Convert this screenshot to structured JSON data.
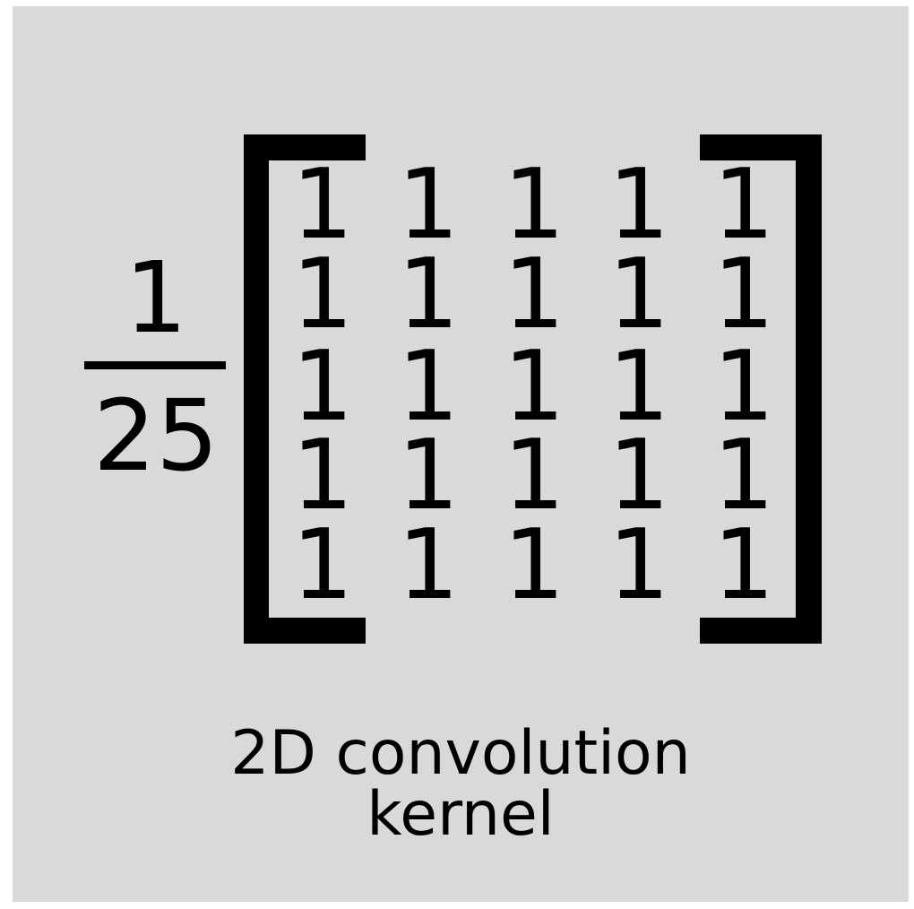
{
  "fraction": {
    "numerator": "1",
    "denominator": "25"
  },
  "matrix": [
    [
      "1",
      "1",
      "1",
      "1",
      "1"
    ],
    [
      "1",
      "1",
      "1",
      "1",
      "1"
    ],
    [
      "1",
      "1",
      "1",
      "1",
      "1"
    ],
    [
      "1",
      "1",
      "1",
      "1",
      "1"
    ],
    [
      "1",
      "1",
      "1",
      "1",
      "1"
    ]
  ],
  "caption": {
    "line1": "2D convolution",
    "line2": "kernel"
  }
}
